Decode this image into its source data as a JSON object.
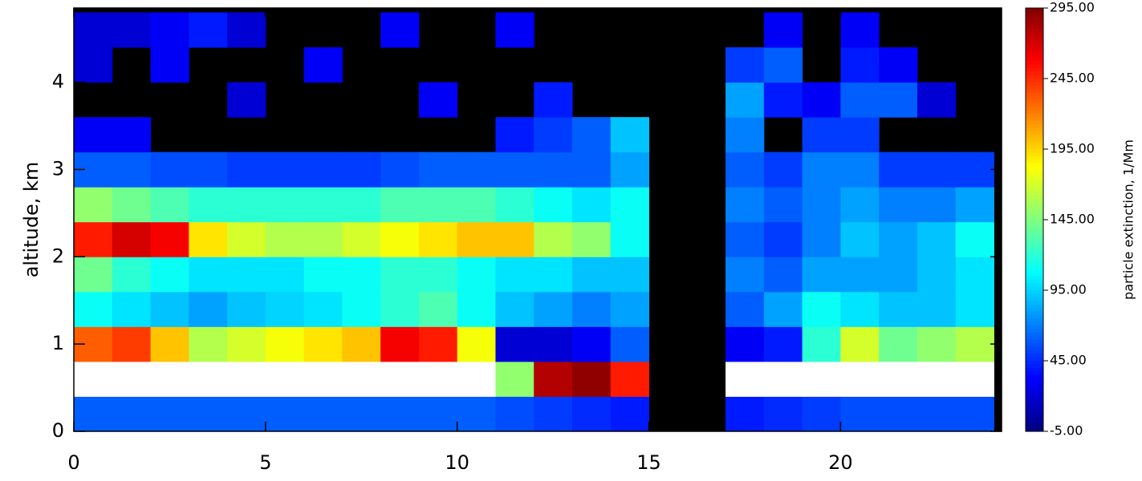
{
  "chart_data": {
    "type": "heatmap",
    "ylabel": "altitude, km",
    "colorbar_label": "particle extinction, 1/Mm",
    "x_edges": [
      0,
      1,
      2,
      3,
      4,
      5,
      6,
      7,
      8,
      9,
      10,
      11,
      12,
      13,
      14,
      15,
      16,
      17,
      18,
      19,
      20,
      21,
      22,
      23,
      24
    ],
    "y_edges": [
      0,
      0.4,
      0.8,
      1.2,
      1.6,
      2.0,
      2.4,
      2.8,
      3.2,
      3.6,
      4.0,
      4.4,
      4.8
    ],
    "z": [
      [
        60,
        60,
        60,
        60,
        60,
        60,
        60,
        60,
        60,
        60,
        60,
        55,
        50,
        45,
        40,
        null,
        null,
        40,
        45,
        50,
        55,
        55,
        55,
        55
      ],
      [
        320,
        320,
        320,
        320,
        320,
        320,
        320,
        320,
        320,
        320,
        300,
        150,
        280,
        290,
        250,
        null,
        null,
        320,
        320,
        300,
        320,
        320,
        320,
        300
      ],
      [
        230,
        240,
        200,
        160,
        170,
        180,
        190,
        200,
        260,
        250,
        180,
        20,
        20,
        30,
        60,
        null,
        null,
        30,
        40,
        120,
        170,
        140,
        150,
        160
      ],
      [
        110,
        100,
        90,
        80,
        90,
        95,
        100,
        110,
        120,
        130,
        110,
        90,
        80,
        70,
        80,
        null,
        null,
        60,
        80,
        110,
        100,
        90,
        90,
        100
      ],
      [
        140,
        120,
        110,
        100,
        100,
        100,
        110,
        110,
        120,
        120,
        110,
        100,
        100,
        90,
        90,
        null,
        null,
        70,
        60,
        80,
        80,
        80,
        90,
        100
      ],
      [
        250,
        270,
        260,
        190,
        170,
        160,
        160,
        170,
        180,
        190,
        200,
        200,
        160,
        150,
        110,
        null,
        null,
        60,
        50,
        70,
        90,
        80,
        90,
        110
      ],
      [
        150,
        140,
        130,
        120,
        120,
        120,
        120,
        120,
        130,
        130,
        130,
        120,
        110,
        100,
        110,
        null,
        null,
        70,
        60,
        70,
        80,
        70,
        70,
        80
      ],
      [
        60,
        60,
        55,
        55,
        50,
        50,
        50,
        50,
        55,
        60,
        60,
        60,
        60,
        60,
        80,
        null,
        null,
        60,
        50,
        70,
        70,
        50,
        50,
        50
      ],
      [
        30,
        30,
        null,
        null,
        null,
        null,
        null,
        null,
        null,
        null,
        null,
        40,
        50,
        60,
        90,
        null,
        null,
        70,
        null,
        50,
        50,
        null,
        null,
        null
      ],
      [
        null,
        null,
        null,
        null,
        20,
        null,
        null,
        null,
        null,
        30,
        null,
        null,
        40,
        null,
        null,
        null,
        null,
        80,
        40,
        30,
        60,
        60,
        20,
        null
      ],
      [
        20,
        null,
        30,
        null,
        null,
        null,
        30,
        null,
        null,
        null,
        null,
        null,
        null,
        null,
        null,
        null,
        null,
        50,
        60,
        null,
        40,
        30,
        null,
        null
      ],
      [
        20,
        20,
        30,
        40,
        20,
        null,
        null,
        null,
        30,
        null,
        null,
        30,
        null,
        null,
        null,
        null,
        null,
        null,
        30,
        null,
        30,
        null,
        null,
        null
      ]
    ],
    "xlim": [
      0,
      24.2
    ],
    "xticks": [
      0,
      5,
      10,
      15,
      20
    ],
    "ylim": [
      0,
      4.85
    ],
    "yticks": [
      0,
      1,
      2,
      3,
      4
    ],
    "zlim": [
      -5,
      295
    ],
    "zticks": [
      {
        "value": -5,
        "label": "-5.00"
      },
      {
        "value": 45,
        "label": "45.00"
      },
      {
        "value": 95,
        "label": "95.00"
      },
      {
        "value": 145,
        "label": "145.00"
      },
      {
        "value": 195,
        "label": "195.00"
      },
      {
        "value": 245,
        "label": "245.00"
      },
      {
        "value": 295,
        "label": "295.00"
      }
    ],
    "missing_color": "#000000",
    "over_color": "#ffffff"
  }
}
